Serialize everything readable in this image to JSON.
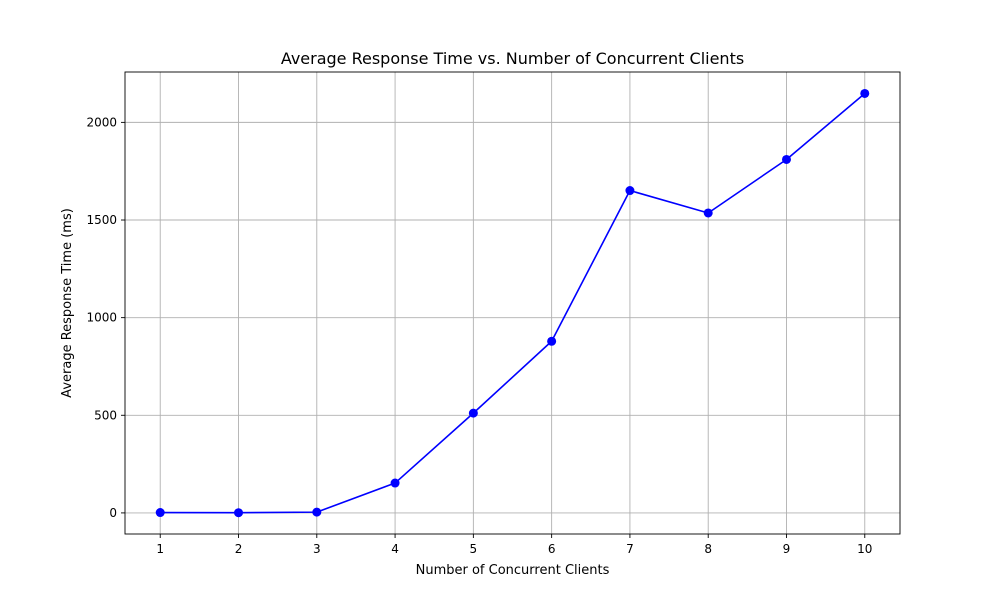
{
  "chart_data": {
    "type": "line",
    "title": "Average Response Time vs. Number of Concurrent Clients",
    "xlabel": "Number of Concurrent Clients",
    "ylabel": "Average Response Time (ms)",
    "x": [
      1,
      2,
      3,
      4,
      5,
      6,
      7,
      8,
      9,
      10
    ],
    "xticks": [
      "1",
      "2",
      "3",
      "4",
      "5",
      "6",
      "7",
      "8",
      "9",
      "10"
    ],
    "yticks": [
      0,
      500,
      1000,
      1500,
      2000
    ],
    "xlim": [
      0.55,
      10.45
    ],
    "ylim": [
      -108,
      2258
    ],
    "grid": true,
    "series": [
      {
        "color": "#0000ff",
        "marker": "circle",
        "values": [
          2,
          1,
          4,
          153,
          511,
          879,
          1651,
          1536,
          1810,
          2148
        ]
      }
    ]
  }
}
